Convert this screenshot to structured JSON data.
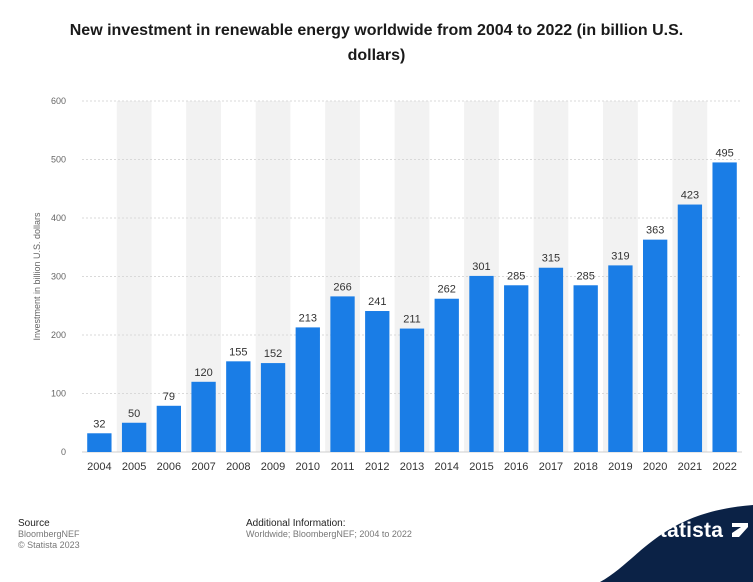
{
  "title": "New investment in renewable energy worldwide from 2004 to 2022 (in billion U.S. dollars)",
  "source": {
    "heading": "Source",
    "line1": "BloombergNEF",
    "line2": "© Statista 2023"
  },
  "additional_info": {
    "heading": "Additional Information:",
    "text": "Worldwide; BloombergNEF; 2004 to 2022"
  },
  "brand": "statista",
  "colors": {
    "bar": "#1a7de6",
    "band": "#f2f2f2",
    "logo_bg": "#0b2246"
  },
  "chart_data": {
    "type": "bar",
    "title": "New investment in renewable energy worldwide from 2004 to 2022 (in billion U.S. dollars)",
    "xlabel": "",
    "ylabel": "Investment in billion U.S. dollars",
    "ylim": [
      0,
      600
    ],
    "yticks": [
      0,
      100,
      200,
      300,
      400,
      500,
      600
    ],
    "categories": [
      "2004",
      "2005",
      "2006",
      "2007",
      "2008",
      "2009",
      "2010",
      "2011",
      "2012",
      "2013",
      "2014",
      "2015",
      "2016",
      "2017",
      "2018",
      "2019",
      "2020",
      "2021",
      "2022"
    ],
    "values": [
      32,
      50,
      79,
      120,
      155,
      152,
      213,
      266,
      241,
      211,
      262,
      301,
      285,
      315,
      285,
      319,
      363,
      423,
      495
    ],
    "grid": true,
    "legend": "none"
  }
}
